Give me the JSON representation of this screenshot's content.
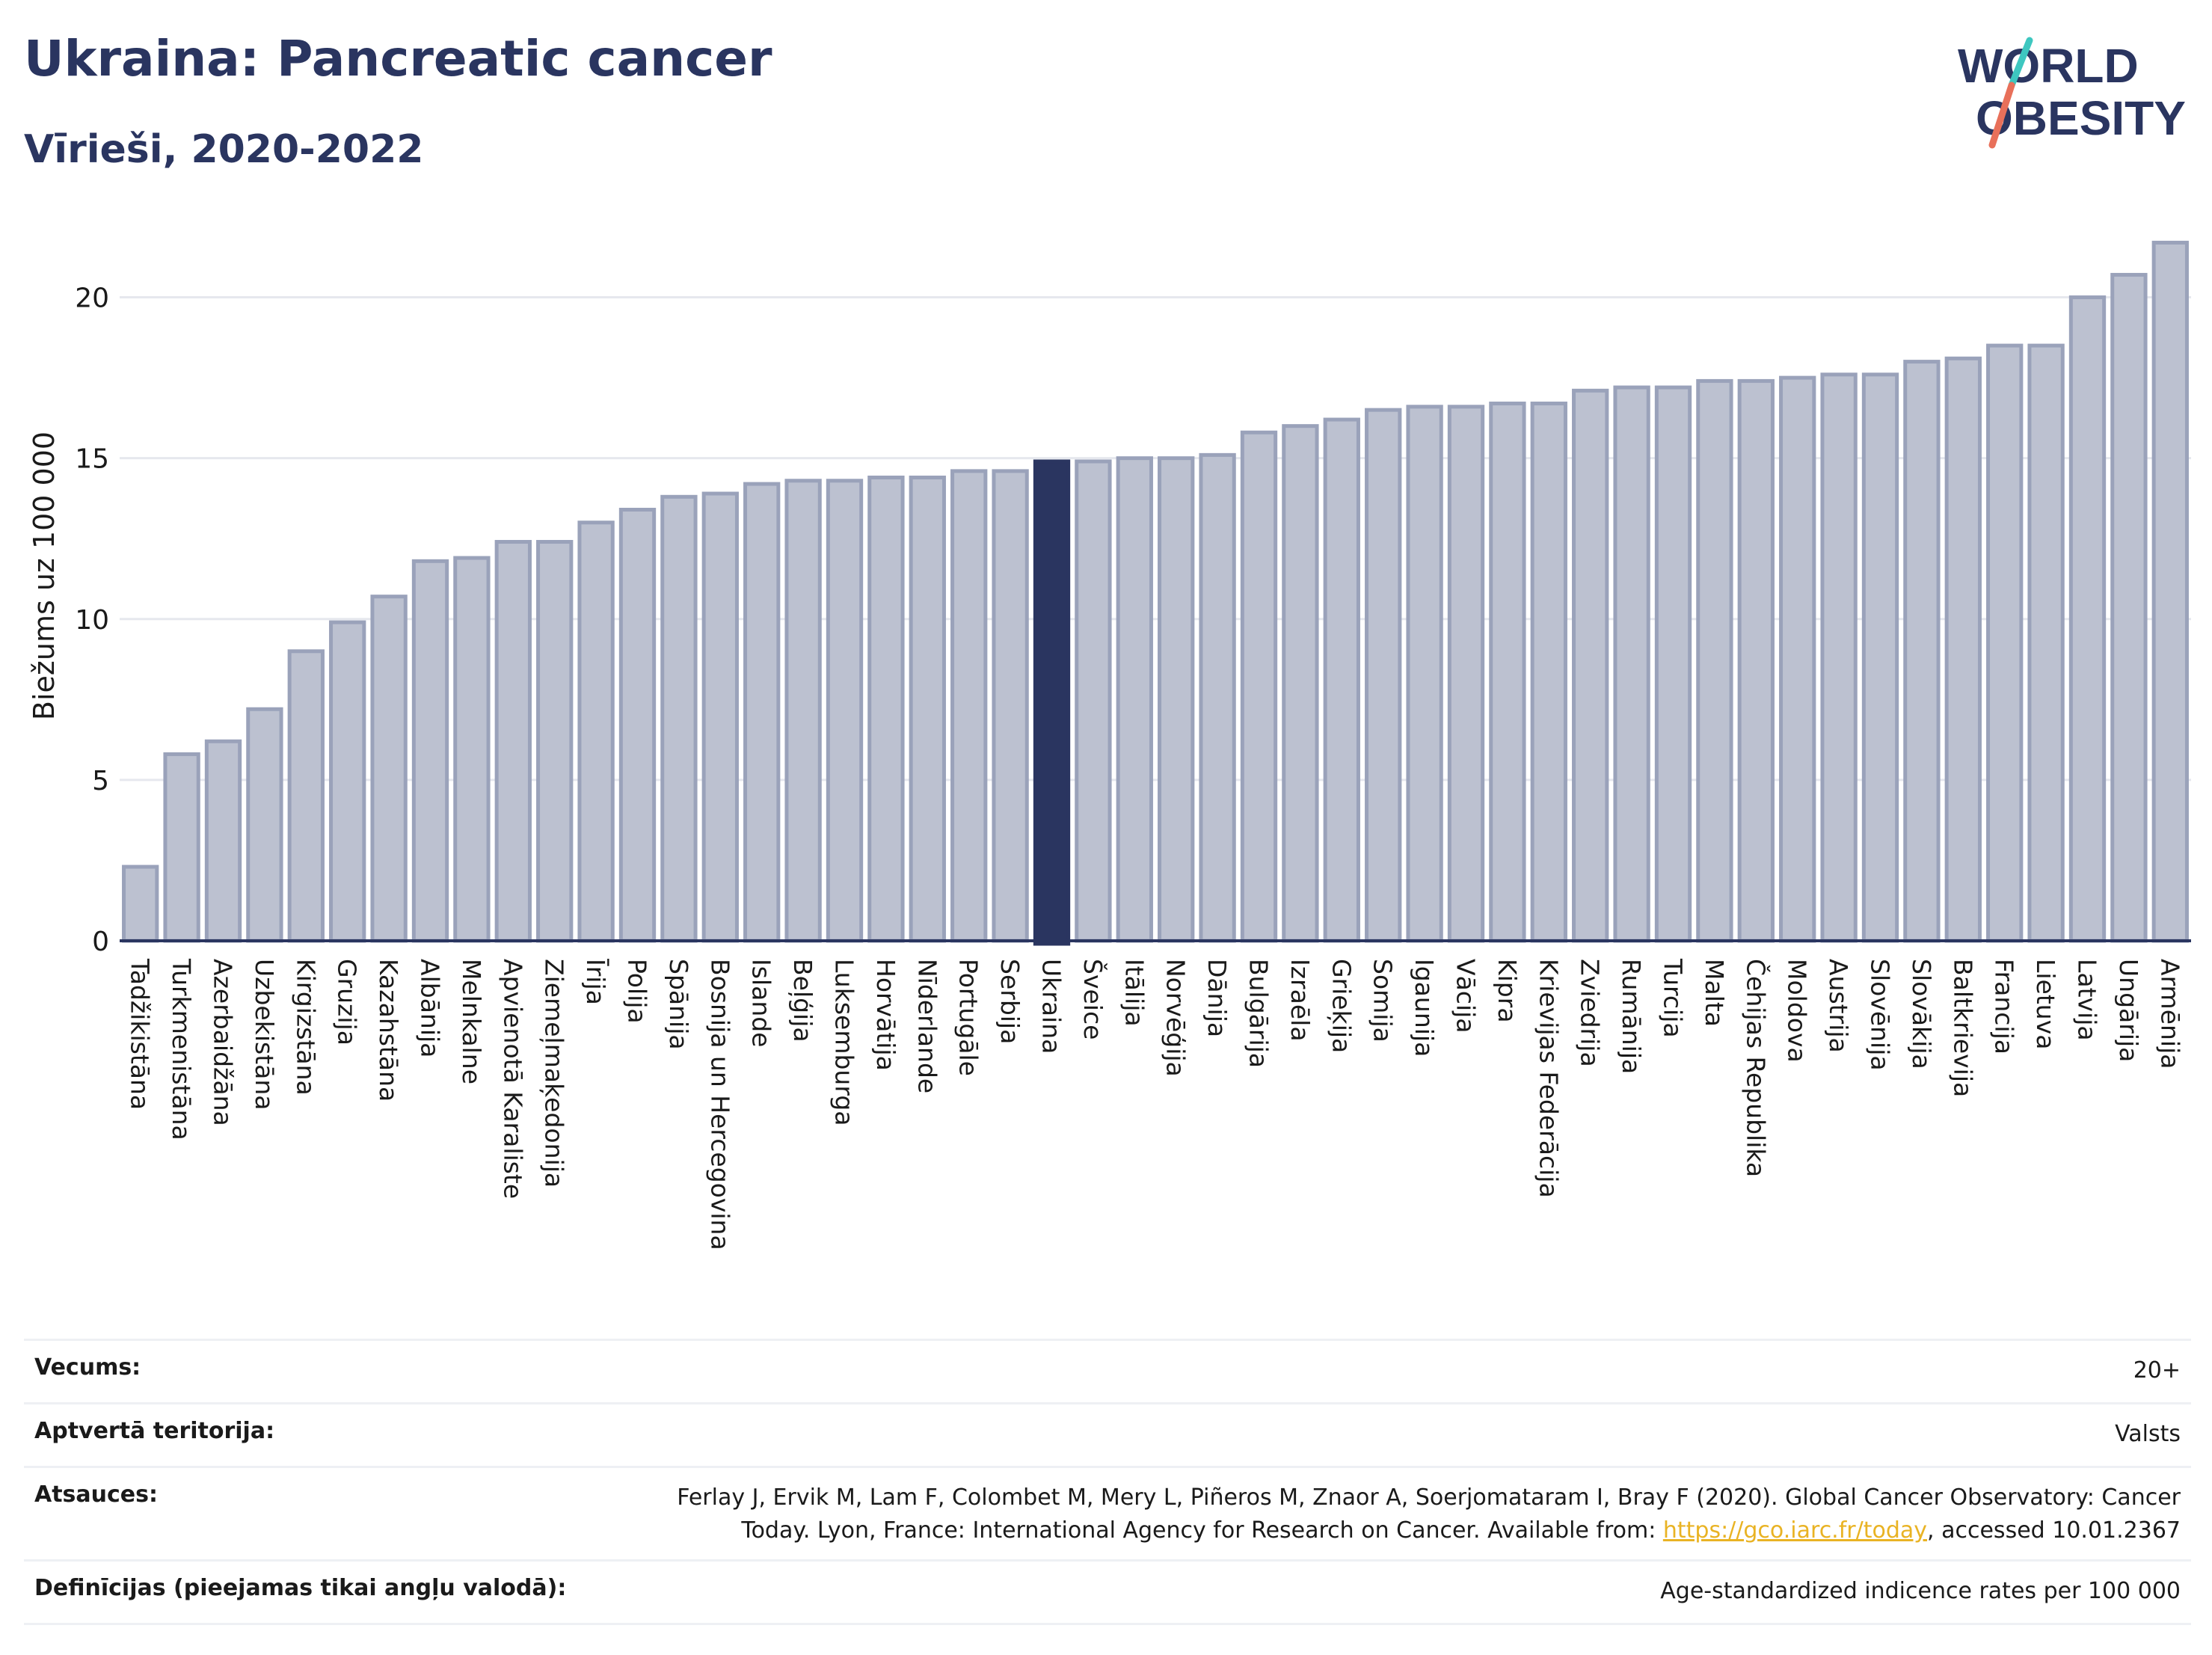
{
  "header": {
    "title": "Ukraina: Pancreatic cancer",
    "subtitle": "Vīrieši, 2020-2022"
  },
  "logo": {
    "line1": "WORLD",
    "line2": "OBESITY",
    "colors": {
      "text": "#2a3560",
      "slash_teal": "#3ec7c0",
      "slash_coral": "#e8705a"
    }
  },
  "colors": {
    "bar_fill": "#bcc1d0",
    "bar_stroke": "#9aa2ba",
    "highlight_fill": "#2a3560",
    "axis": "#2a3560",
    "grid": "#e6e8ee"
  },
  "chart_data": {
    "type": "bar",
    "ylabel": "Biežums uz 100 000",
    "ylim": [
      0,
      22.5
    ],
    "yticks": [
      0,
      5,
      10,
      15,
      20
    ],
    "grid": true,
    "highlight": "Ukraina",
    "categories": [
      "Tadžikistāna",
      "Turkmenistāna",
      "Azerbaidžāna",
      "Uzbekistāna",
      "Kirgizstāna",
      "Gruzija",
      "Kazahstāna",
      "Albānija",
      "Melnkalne",
      "Apvienotā Karaliste",
      "Ziemeļmaķedonija",
      "Īrija",
      "Polija",
      "Spānija",
      "Bosnija un Hercegovina",
      "Islande",
      "Beļģija",
      "Luksemburga",
      "Horvātija",
      "Nīderlande",
      "Portugāle",
      "Serbija",
      "Ukraina",
      "Šveice",
      "Itālija",
      "Norvēģija",
      "Dānija",
      "Bulgārija",
      "Izraēla",
      "Grieķija",
      "Somija",
      "Igaunija",
      "Vācija",
      "Kipra",
      "Krievijas Federācija",
      "Zviedrija",
      "Rumānija",
      "Turcija",
      "Malta",
      "Čehijas Republika",
      "Moldova",
      "Austrija",
      "Slovēnija",
      "Slovākija",
      "Baltkrievija",
      "Francija",
      "Lietuva",
      "Latvija",
      "Ungārija",
      "Armēnija"
    ],
    "values": [
      2.3,
      5.8,
      6.2,
      7.2,
      9.0,
      9.9,
      10.7,
      11.8,
      11.9,
      12.4,
      12.4,
      13.0,
      13.4,
      13.8,
      13.9,
      14.2,
      14.3,
      14.3,
      14.4,
      14.4,
      14.6,
      14.6,
      14.9,
      14.9,
      15.0,
      15.0,
      15.1,
      15.8,
      16.0,
      16.2,
      16.5,
      16.6,
      16.6,
      16.7,
      16.7,
      17.1,
      17.2,
      17.2,
      17.4,
      17.4,
      17.5,
      17.6,
      17.6,
      18.0,
      18.1,
      18.5,
      18.5,
      20.0,
      20.7,
      21.7
    ]
  },
  "meta": [
    {
      "label": "Vecums:",
      "value": "20+"
    },
    {
      "label": "Aptvertā teritorija:",
      "value": "Valsts"
    },
    {
      "label": "Atsauces:",
      "value_pre": "Ferlay J, Ervik M, Lam F, Colombet M, Mery L, Piñeros M, Znaor A, Soerjomataram I, Bray F (2020). Global Cancer Observatory: Cancer Today. Lyon, France: International Agency for Research on Cancer. Available from: ",
      "link": "https://gco.iarc.fr/today",
      "value_post": ", accessed 10.01.2367"
    },
    {
      "label": "Definīcijas (pieejamas tikai angļu valodā):",
      "value": "Age-standardized indicence rates per 100 000"
    }
  ]
}
